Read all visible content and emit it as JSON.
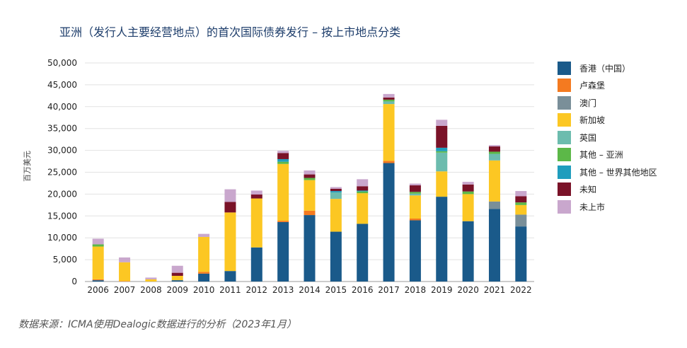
{
  "header": {
    "title": "亚洲（发行人主要经营地点）的首次国际债券发行 – 按上市地点分类"
  },
  "footer": {
    "source": "数据来源：ICMA使用Dealogic数据进行的分析（2023年1月）"
  },
  "chart_data": {
    "type": "bar",
    "stacked": true,
    "title": "亚洲（发行人主要经营地点）的首次国际债券发行 – 按上市地点分类",
    "xlabel": "",
    "ylabel": "百万美元",
    "ylim": [
      0,
      50000
    ],
    "yticks": [
      0,
      5000,
      10000,
      15000,
      20000,
      25000,
      30000,
      35000,
      40000,
      45000,
      50000
    ],
    "ytick_labels": [
      "0",
      "5,000",
      "10,000",
      "15,000",
      "20,000",
      "25,000",
      "30,000",
      "35,000",
      "40,000",
      "45,000",
      "50,000"
    ],
    "grid": true,
    "legend_position": "right",
    "categories": [
      "2006",
      "2007",
      "2008",
      "2009",
      "2010",
      "2011",
      "2012",
      "2013",
      "2014",
      "2015",
      "2016",
      "2017",
      "2018",
      "2019",
      "2020",
      "2021",
      "2022"
    ],
    "series": [
      {
        "name": "香港（中国）",
        "color": "#1a5a8a",
        "values": [
          300,
          0,
          0,
          300,
          1800,
          2400,
          7800,
          13600,
          15200,
          11400,
          13200,
          27100,
          14000,
          19400,
          13800,
          16600,
          12600
        ]
      },
      {
        "name": "卢森堡",
        "color": "#f47a20",
        "values": [
          200,
          100,
          0,
          0,
          400,
          0,
          0,
          300,
          1000,
          0,
          0,
          500,
          400,
          0,
          0,
          0,
          0
        ]
      },
      {
        "name": "澳门",
        "color": "#7a8f99",
        "values": [
          0,
          0,
          0,
          0,
          0,
          0,
          0,
          0,
          0,
          0,
          0,
          0,
          0,
          0,
          0,
          1700,
          2700
        ]
      },
      {
        "name": "新加坡",
        "color": "#fcc723",
        "values": [
          7500,
          4300,
          500,
          1000,
          8000,
          13400,
          11200,
          13000,
          7000,
          7500,
          7000,
          13000,
          5300,
          5800,
          6200,
          9400,
          2200
        ]
      },
      {
        "name": "英国",
        "color": "#6cbcae",
        "values": [
          0,
          0,
          0,
          0,
          0,
          0,
          0,
          0,
          0,
          1500,
          0,
          600,
          400,
          4300,
          0,
          1500,
          0
        ]
      },
      {
        "name": "其他 – 亚洲",
        "color": "#5cb848",
        "values": [
          500,
          0,
          0,
          0,
          0,
          0,
          0,
          500,
          500,
          0,
          400,
          400,
          400,
          300,
          600,
          500,
          600
        ]
      },
      {
        "name": "其他 – 世界其他地区",
        "color": "#1f9dbd",
        "values": [
          0,
          0,
          0,
          0,
          0,
          0,
          0,
          600,
          0,
          300,
          200,
          0,
          0,
          800,
          0,
          0,
          0
        ]
      },
      {
        "name": "未知",
        "color": "#7a1228",
        "values": [
          0,
          0,
          0,
          700,
          0,
          2400,
          900,
          1400,
          800,
          500,
          1000,
          500,
          1500,
          5000,
          1600,
          1200,
          1400
        ]
      },
      {
        "name": "未上市",
        "color": "#c9a7cd",
        "values": [
          1300,
          1100,
          400,
          1600,
          700,
          2900,
          900,
          500,
          900,
          400,
          1600,
          800,
          400,
          1400,
          600,
          300,
          1200
        ]
      }
    ]
  }
}
